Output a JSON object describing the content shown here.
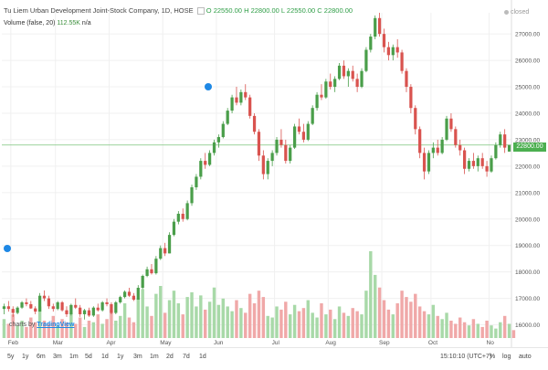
{
  "title_line": {
    "symbol": "Tu Liem Urban Development Joint-Stock Company, 1D, HOSE",
    "ohlc_text": "O 22550.00  H 22800.00  L 22550.00  C 22800.00"
  },
  "volume_line": {
    "label": "Volume (false, 20)",
    "value": "112.55K",
    "na": "n/a"
  },
  "status": "closed",
  "watermark": {
    "prefix": "charts by",
    "brand": "TradingView"
  },
  "current_price_label": "22800.00",
  "colors": {
    "up": "#4a9e4a",
    "down": "#d9534f",
    "vol_up": "#a8d9a8",
    "vol_down": "#f0a8a8",
    "grid": "#f0f0f0",
    "last_line": "#7cc47c"
  },
  "axis": {
    "y_ticks": [
      "27000.00",
      "26000.00",
      "25000.00",
      "24000.00",
      "23000.00",
      "22000.00",
      "21000.00",
      "20000.00",
      "19000.00",
      "18000.00",
      "17000.00",
      "16000.00"
    ],
    "x_months": [
      "Feb",
      "Mar",
      "Apr",
      "May",
      "Jun",
      "Jul",
      "Aug",
      "Sep",
      "Oct",
      "No"
    ]
  },
  "toolbar": {
    "ranges": [
      "5y",
      "1y",
      "6m",
      "3m",
      "1m",
      "5d",
      "1d"
    ],
    "intervals": [
      "1y",
      "3m",
      "1m",
      "2d",
      "7d",
      "1d"
    ],
    "time": "15:10:10 (UTC+7)",
    "percent": "%",
    "log": "log",
    "auto": "auto"
  },
  "chart_data": {
    "type": "candlestick",
    "ylim": [
      15500,
      27800
    ],
    "candles": [
      [
        16600,
        16800,
        16400,
        16700
      ],
      [
        16700,
        16900,
        16500,
        16600
      ],
      [
        16600,
        16700,
        16300,
        16450
      ],
      [
        16450,
        16700,
        16400,
        16650
      ],
      [
        16650,
        16900,
        16600,
        16850
      ],
      [
        16850,
        17000,
        16700,
        16780
      ],
      [
        16780,
        16900,
        16600,
        16620
      ],
      [
        16620,
        16700,
        16400,
        16500
      ],
      [
        16500,
        17200,
        16500,
        17100
      ],
      [
        17100,
        17300,
        16900,
        17000
      ],
      [
        17000,
        17100,
        16600,
        16700
      ],
      [
        16700,
        16800,
        16500,
        16600
      ],
      [
        16600,
        16900,
        16550,
        16850
      ],
      [
        16850,
        16900,
        16500,
        16550
      ],
      [
        16550,
        16700,
        16300,
        16400
      ],
      [
        16400,
        16800,
        16350,
        16750
      ],
      [
        16750,
        17000,
        16600,
        16650
      ],
      [
        16650,
        16750,
        16300,
        16400
      ],
      [
        16400,
        16600,
        16200,
        16550
      ],
      [
        16550,
        16650,
        16300,
        16350
      ],
      [
        16350,
        16700,
        16300,
        16650
      ],
      [
        16650,
        16800,
        16500,
        16550
      ],
      [
        16550,
        16900,
        16500,
        16850
      ],
      [
        16850,
        17000,
        16700,
        16780
      ],
      [
        16780,
        16850,
        16400,
        16450
      ],
      [
        16450,
        16900,
        16400,
        16850
      ],
      [
        16850,
        17100,
        16800,
        17050
      ],
      [
        17050,
        17300,
        17000,
        17250
      ],
      [
        17250,
        17400,
        17050,
        17100
      ],
      [
        17100,
        17200,
        16900,
        16950
      ],
      [
        16950,
        17500,
        16950,
        17400
      ],
      [
        17400,
        17900,
        17350,
        17850
      ],
      [
        17850,
        18200,
        17800,
        18100
      ],
      [
        18100,
        18300,
        17900,
        17950
      ],
      [
        17950,
        18600,
        17900,
        18500
      ],
      [
        18500,
        19000,
        18450,
        18900
      ],
      [
        18900,
        19100,
        18600,
        18700
      ],
      [
        18700,
        19500,
        18700,
        19400
      ],
      [
        19400,
        20000,
        19350,
        19900
      ],
      [
        19900,
        20300,
        19800,
        20200
      ],
      [
        20200,
        20400,
        19900,
        20000
      ],
      [
        20000,
        20700,
        19950,
        20600
      ],
      [
        20600,
        21300,
        20500,
        21200
      ],
      [
        21200,
        21700,
        21100,
        21600
      ],
      [
        21600,
        22300,
        21500,
        22200
      ],
      [
        22200,
        22500,
        21900,
        22050
      ],
      [
        22050,
        22600,
        22000,
        22500
      ],
      [
        22500,
        23000,
        22400,
        22900
      ],
      [
        22900,
        23200,
        22700,
        23100
      ],
      [
        23100,
        23700,
        23050,
        23600
      ],
      [
        23600,
        24200,
        23550,
        24100
      ],
      [
        24100,
        24700,
        24000,
        24600
      ],
      [
        24600,
        25000,
        24300,
        24400
      ],
      [
        24400,
        24900,
        24300,
        24800
      ],
      [
        24800,
        25100,
        24500,
        24600
      ],
      [
        24600,
        24700,
        23800,
        23900
      ],
      [
        23900,
        24000,
        23200,
        23300
      ],
      [
        23300,
        23400,
        22200,
        22400
      ],
      [
        22400,
        22600,
        21500,
        21700
      ],
      [
        21700,
        22300,
        21500,
        22200
      ],
      [
        22200,
        22600,
        22000,
        22500
      ],
      [
        22500,
        23100,
        22400,
        23000
      ],
      [
        23000,
        23400,
        22700,
        22800
      ],
      [
        22800,
        23000,
        22100,
        22200
      ],
      [
        22200,
        22800,
        22100,
        22700
      ],
      [
        22700,
        23600,
        22650,
        23500
      ],
      [
        23500,
        23800,
        23200,
        23300
      ],
      [
        23300,
        23600,
        22900,
        23000
      ],
      [
        23000,
        23700,
        22950,
        23600
      ],
      [
        23600,
        24300,
        23550,
        24200
      ],
      [
        24200,
        24800,
        24100,
        24700
      ],
      [
        24700,
        25100,
        24500,
        24600
      ],
      [
        24600,
        25300,
        24550,
        25200
      ],
      [
        25200,
        25500,
        24900,
        25000
      ],
      [
        25000,
        25400,
        24800,
        25300
      ],
      [
        25300,
        25900,
        25250,
        25800
      ],
      [
        25800,
        26000,
        25300,
        25400
      ],
      [
        25400,
        25700,
        25000,
        25600
      ],
      [
        25600,
        25800,
        25200,
        25300
      ],
      [
        25300,
        25500,
        24800,
        25000
      ],
      [
        25000,
        25700,
        24950,
        25600
      ],
      [
        25600,
        26500,
        25550,
        26400
      ],
      [
        26400,
        27000,
        26300,
        26900
      ],
      [
        26900,
        27700,
        26800,
        27600
      ],
      [
        27600,
        27800,
        26900,
        27000
      ],
      [
        27000,
        27200,
        26300,
        26500
      ],
      [
        26500,
        26700,
        26000,
        26200
      ],
      [
        26200,
        26600,
        26000,
        26500
      ],
      [
        26500,
        26800,
        26100,
        26300
      ],
      [
        26300,
        26400,
        25500,
        25600
      ],
      [
        25600,
        25700,
        24800,
        25000
      ],
      [
        25000,
        25100,
        24000,
        24200
      ],
      [
        24200,
        24300,
        23200,
        23400
      ],
      [
        23400,
        23500,
        22300,
        22500
      ],
      [
        22500,
        22700,
        21500,
        21800
      ],
      [
        21800,
        22600,
        21700,
        22500
      ],
      [
        22500,
        22900,
        22300,
        22700
      ],
      [
        22700,
        23000,
        22400,
        22500
      ],
      [
        22500,
        23100,
        22450,
        23000
      ],
      [
        23000,
        23900,
        22950,
        23800
      ],
      [
        23800,
        24000,
        23300,
        23400
      ],
      [
        23400,
        23500,
        22700,
        22800
      ],
      [
        22800,
        23000,
        22400,
        22600
      ],
      [
        22600,
        22700,
        21700,
        21900
      ],
      [
        21900,
        22300,
        21800,
        22200
      ],
      [
        22200,
        22500,
        21900,
        22000
      ],
      [
        22000,
        22400,
        21800,
        22300
      ],
      [
        22300,
        22500,
        21900,
        22000
      ],
      [
        22000,
        22200,
        21600,
        21800
      ],
      [
        21800,
        22400,
        21750,
        22300
      ],
      [
        22300,
        22900,
        22250,
        22800
      ],
      [
        22800,
        23300,
        22700,
        23200
      ],
      [
        23200,
        23400,
        22500,
        22700
      ],
      [
        22550,
        22800,
        22550,
        22800
      ]
    ],
    "volumes": [
      1.2,
      0.9,
      1.5,
      0.8,
      1.1,
      0.7,
      1.3,
      1.0,
      2.0,
      1.1,
      0.9,
      1.4,
      0.8,
      1.2,
      1.0,
      1.6,
      0.9,
      1.3,
      0.7,
      1.1,
      1.0,
      1.5,
      0.9,
      1.2,
      1.8,
      1.1,
      1.4,
      2.2,
      1.3,
      1.0,
      2.5,
      3.1,
      2.0,
      1.4,
      2.8,
      3.3,
      1.6,
      2.4,
      3.0,
      2.2,
      1.5,
      2.6,
      2.9,
      2.0,
      2.7,
      1.8,
      2.3,
      3.2,
      2.1,
      2.5,
      2.0,
      1.7,
      2.4,
      1.9,
      1.6,
      2.8,
      2.2,
      3.0,
      2.6,
      1.4,
      1.3,
      2.0,
      1.8,
      2.3,
      1.5,
      2.1,
      1.7,
      1.9,
      2.4,
      1.6,
      1.3,
      2.2,
      1.5,
      1.8,
      1.2,
      2.0,
      1.6,
      1.4,
      1.9,
      1.7,
      1.5,
      3.0,
      5.5,
      4.0,
      3.2,
      2.4,
      1.8,
      1.5,
      2.2,
      3.0,
      2.6,
      2.3,
      2.8,
      2.0,
      1.7,
      1.5,
      2.1,
      1.4,
      1.2,
      1.6,
      1.1,
      0.9,
      1.3,
      1.0,
      0.8,
      1.2,
      0.9,
      0.7,
      1.1,
      0.8,
      0.6,
      1.0,
      1.4,
      0.9,
      0.5
    ]
  }
}
